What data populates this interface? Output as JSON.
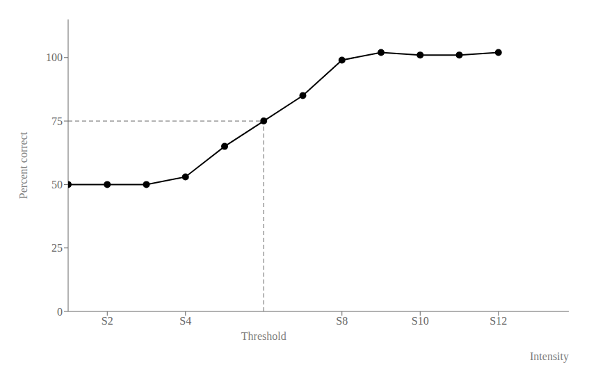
{
  "chart_data": {
    "type": "line",
    "x": [
      1,
      2,
      3,
      4,
      5,
      6,
      7,
      8,
      9,
      10,
      11,
      12
    ],
    "values": [
      50,
      50,
      50,
      53,
      65,
      75,
      85,
      99,
      102,
      101,
      101,
      102
    ],
    "color": "#000000",
    "marker": "circle",
    "xlabel": "Intensity",
    "ylabel": "Percent correct",
    "xlim": [
      1,
      13.8
    ],
    "ylim": [
      0,
      115
    ],
    "xticks": [
      {
        "value": 2,
        "label": "S2"
      },
      {
        "value": 4,
        "label": "S4"
      },
      {
        "value": 8,
        "label": "S8"
      },
      {
        "value": 10,
        "label": "S10"
      },
      {
        "value": 12,
        "label": "S12"
      }
    ],
    "yticks": [
      0,
      25,
      50,
      75,
      100
    ],
    "grid": false,
    "annotations": [
      {
        "text": "Threshold",
        "x": 6,
        "y": 75
      }
    ]
  }
}
